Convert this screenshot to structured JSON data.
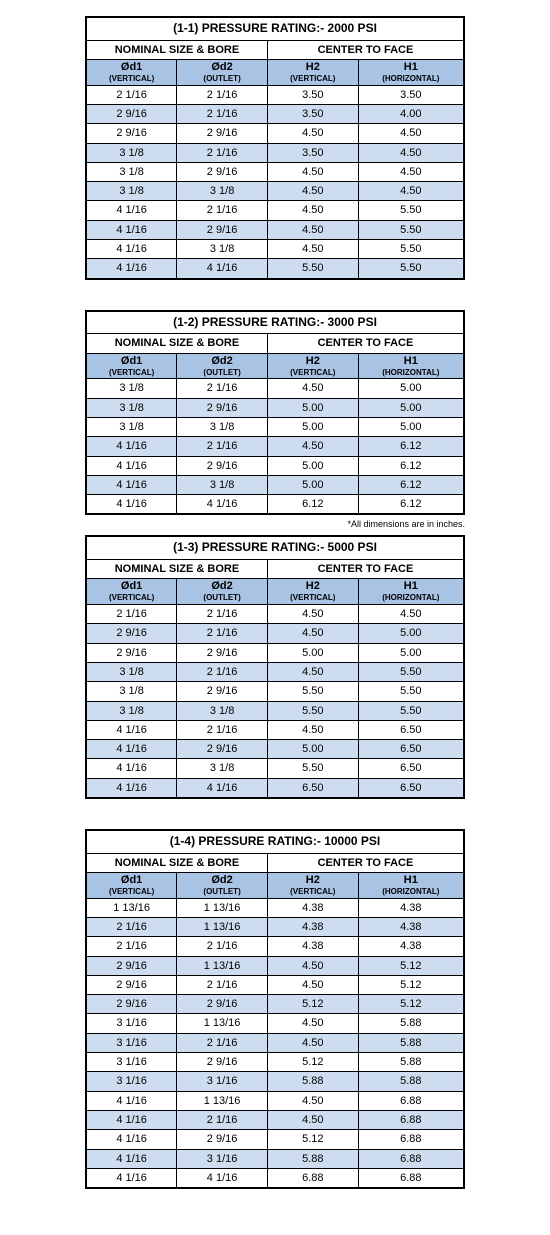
{
  "footnote": "*All dimensions are in inches.",
  "colors": {
    "header_bg": "#a9c3e5",
    "row_alt_bg": "#cdddef",
    "border": "#000000",
    "text": "#000000",
    "background": "#ffffff"
  },
  "columns": {
    "group1": "NOMINAL SIZE & BORE",
    "group2": "CENTER TO FACE",
    "c1": "Ød1",
    "c1_sub": "(VERTICAL)",
    "c2": "Ød2",
    "c2_sub": "(OUTLET)",
    "c3": "H2",
    "c3_sub": "(VERTICAL)",
    "c4": "H1",
    "c4_sub": "(HORIZONTAL)"
  },
  "tables": [
    {
      "title": "(1-1) PRESSURE RATING:- 2000 PSI",
      "rows": [
        [
          "2 1/16",
          "2 1/16",
          "3.50",
          "3.50"
        ],
        [
          "2 9/16",
          "2 1/16",
          "3.50",
          "4.00"
        ],
        [
          "2 9/16",
          "2 9/16",
          "4.50",
          "4.50"
        ],
        [
          "3 1/8",
          "2 1/16",
          "3.50",
          "4.50"
        ],
        [
          "3 1/8",
          "2 9/16",
          "4.50",
          "4.50"
        ],
        [
          "3 1/8",
          "3 1/8",
          "4.50",
          "4.50"
        ],
        [
          "4 1/16",
          "2 1/16",
          "4.50",
          "5.50"
        ],
        [
          "4 1/16",
          "2 9/16",
          "4.50",
          "5.50"
        ],
        [
          "4 1/16",
          "3 1/8",
          "4.50",
          "5.50"
        ],
        [
          "4 1/16",
          "4 1/16",
          "5.50",
          "5.50"
        ]
      ]
    },
    {
      "title": "(1-2) PRESSURE RATING:- 3000 PSI",
      "rows": [
        [
          "3 1/8",
          "2 1/16",
          "4.50",
          "5.00"
        ],
        [
          "3 1/8",
          "2 9/16",
          "5.00",
          "5.00"
        ],
        [
          "3 1/8",
          "3 1/8",
          "5.00",
          "5.00"
        ],
        [
          "4 1/16",
          "2 1/16",
          "4.50",
          "6.12"
        ],
        [
          "4 1/16",
          "2 9/16",
          "5.00",
          "6.12"
        ],
        [
          "4 1/16",
          "3 1/8",
          "5.00",
          "6.12"
        ],
        [
          "4 1/16",
          "4 1/16",
          "6.12",
          "6.12"
        ]
      ]
    },
    {
      "title": "(1-3) PRESSURE RATING:- 5000 PSI",
      "rows": [
        [
          "2 1/16",
          "2 1/16",
          "4.50",
          "4.50"
        ],
        [
          "2 9/16",
          "2 1/16",
          "4.50",
          "5.00"
        ],
        [
          "2 9/16",
          "2 9/16",
          "5.00",
          "5.00"
        ],
        [
          "3 1/8",
          "2 1/16",
          "4.50",
          "5.50"
        ],
        [
          "3 1/8",
          "2 9/16",
          "5.50",
          "5.50"
        ],
        [
          "3 1/8",
          "3 1/8",
          "5.50",
          "5.50"
        ],
        [
          "4 1/16",
          "2 1/16",
          "4.50",
          "6.50"
        ],
        [
          "4 1/16",
          "2 9/16",
          "5.00",
          "6.50"
        ],
        [
          "4 1/16",
          "3 1/8",
          "5.50",
          "6.50"
        ],
        [
          "4 1/16",
          "4 1/16",
          "6.50",
          "6.50"
        ]
      ]
    },
    {
      "title": "(1-4) PRESSURE RATING:- 10000 PSI",
      "rows": [
        [
          "1 13/16",
          "1 13/16",
          "4.38",
          "4.38"
        ],
        [
          "2 1/16",
          "1 13/16",
          "4.38",
          "4.38"
        ],
        [
          "2 1/16",
          "2 1/16",
          "4.38",
          "4.38"
        ],
        [
          "2 9/16",
          "1 13/16",
          "4.50",
          "5.12"
        ],
        [
          "2 9/16",
          "2 1/16",
          "4.50",
          "5.12"
        ],
        [
          "2 9/16",
          "2 9/16",
          "5.12",
          "5.12"
        ],
        [
          "3 1/16",
          "1 13/16",
          "4.50",
          "5.88"
        ],
        [
          "3 1/16",
          "2 1/16",
          "4.50",
          "5.88"
        ],
        [
          "3 1/16",
          "2 9/16",
          "5.12",
          "5.88"
        ],
        [
          "3 1/16",
          "3 1/16",
          "5.88",
          "5.88"
        ],
        [
          "4 1/16",
          "1 13/16",
          "4.50",
          "6.88"
        ],
        [
          "4 1/16",
          "2 1/16",
          "4.50",
          "6.88"
        ],
        [
          "4 1/16",
          "2 9/16",
          "5.12",
          "6.88"
        ],
        [
          "4 1/16",
          "3 1/16",
          "5.88",
          "6.88"
        ],
        [
          "4 1/16",
          "4 1/16",
          "6.88",
          "6.88"
        ]
      ]
    }
  ]
}
